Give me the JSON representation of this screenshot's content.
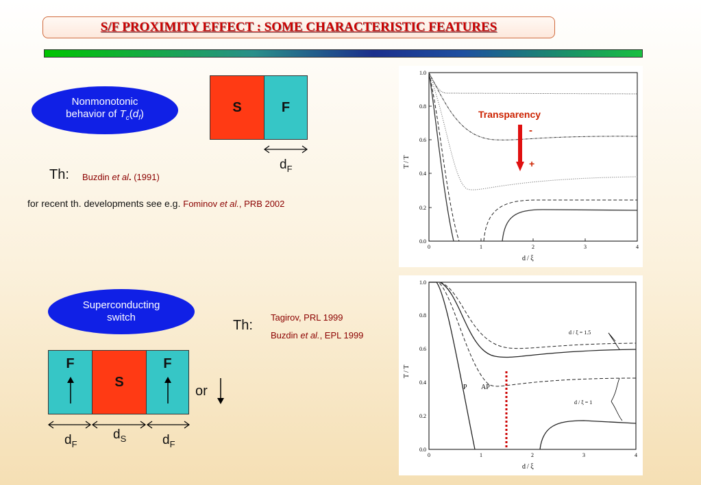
{
  "title": "S/F PROXIMITY EFFECT : SOME CHARACTERISTIC FEATURES",
  "top": {
    "ellipse_line1": "Nonmonotonic",
    "ellipse_line2_prefix": "behavior of ",
    "ellipse_line2_var": "T",
    "ellipse_line2_sub": "c",
    "ellipse_line2_open": "(",
    "ellipse_line2_arg": "d",
    "ellipse_line2_argsub": "f",
    "ellipse_line2_close": ")",
    "s_label": "S",
    "f_label": "F",
    "thickness_label": "d",
    "thickness_sub": "F",
    "th_label": "Th:",
    "th_ref_author": "Buzdin ",
    "th_ref_etal": "et al",
    "th_ref_dot": ".",
    "th_ref_year": " (1991)",
    "recent_text": "for recent th. developments see e.g. ",
    "recent_ref_author": "Fominov ",
    "recent_ref_etal": "et al.",
    "recent_ref_rest": ", PRB 2002"
  },
  "bottom": {
    "ellipse_line1": "Superconducting",
    "ellipse_line2": "switch",
    "f_left": "F",
    "s_mid": "S",
    "f_right": "F",
    "or_text": "or",
    "d_f_left": "d",
    "d_f_left_sub": "F",
    "d_s": "d",
    "d_s_sub": "S",
    "d_f_right": "d",
    "d_f_right_sub": "F",
    "th_label": "Th:",
    "ref1": "Tagirov, PRL 1999",
    "ref2_author": "Buzdin ",
    "ref2_etal": "et al.",
    "ref2_rest": ", EPL 1999"
  },
  "plot1": {
    "ylabel": "T / T",
    "ylabel_sub1": "C",
    "ylabel_sub2": "C0",
    "xlabel": "d / ξ",
    "xlabel_sub1": "F",
    "xlabel_sub2": "F",
    "yticks": [
      "1.0",
      "0.8",
      "0.6",
      "0.4",
      "0.2",
      "0.0"
    ],
    "xticks": [
      "0",
      "1",
      "2",
      "3",
      "4"
    ],
    "annotation": "Transparency",
    "minus": "-",
    "plus": "+"
  },
  "plot2": {
    "ylabel": "T / T",
    "ylabel_sub1": "C",
    "ylabel_sub2": "C0",
    "xlabel": "d / ξ",
    "xlabel_sub1": "F",
    "xlabel_sub2": "F",
    "yticks": [
      "1.0",
      "0.8",
      "0.6",
      "0.4",
      "0.2",
      "0.0"
    ],
    "xticks": [
      "0",
      "1",
      "2",
      "3",
      "4"
    ],
    "label_p": "P",
    "label_ap": "AP",
    "label_ds15": "d",
    "label_ds15_sub": "S",
    "label_ds15_mid": " / ξ",
    "label_ds15_sub2": "S",
    "label_ds15_end": " = 1.5",
    "label_ds1": "d",
    "label_ds1_sub": "S",
    "label_ds1_mid": " / ξ",
    "label_ds1_sub2": "S",
    "label_ds1_end": " = 1"
  },
  "colors": {
    "accent_red": "#cc0000",
    "ellipse_blue": "#1020e6",
    "s_red": "#ff3a14",
    "f_cyan": "#36c6c6"
  }
}
